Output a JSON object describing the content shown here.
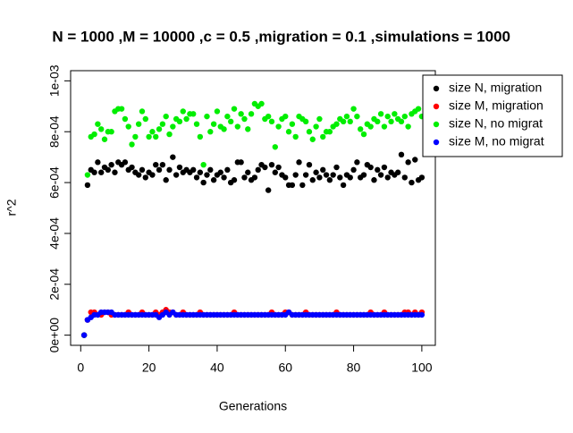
{
  "chart_data": {
    "type": "scatter",
    "title": "N = 1000 ,M = 10000 ,c = 0.5 ,migration = 0.1 ,simulations = 1000",
    "x_label": "Generations",
    "y_label": "r^2",
    "x": [
      1,
      2,
      3,
      4,
      5,
      6,
      7,
      8,
      9,
      10,
      11,
      12,
      13,
      14,
      15,
      16,
      17,
      18,
      19,
      20,
      21,
      22,
      23,
      24,
      25,
      26,
      27,
      28,
      29,
      30,
      31,
      32,
      33,
      34,
      35,
      36,
      37,
      38,
      39,
      40,
      41,
      42,
      43,
      44,
      45,
      46,
      47,
      48,
      49,
      50,
      51,
      52,
      53,
      54,
      55,
      56,
      57,
      58,
      59,
      60,
      61,
      62,
      63,
      64,
      65,
      66,
      67,
      68,
      69,
      70,
      71,
      72,
      73,
      74,
      75,
      76,
      77,
      78,
      79,
      80,
      81,
      82,
      83,
      84,
      85,
      86,
      87,
      88,
      89,
      90,
      91,
      92,
      93,
      94,
      95,
      96,
      97,
      98,
      99,
      100
    ],
    "xlim": [
      -2.96,
      103.96
    ],
    "xticks": [
      0,
      20,
      40,
      60,
      80,
      100
    ],
    "ylim": [
      -4e-05,
      0.00104
    ],
    "yticks": [
      {
        "value": 0,
        "label": "0e+00"
      },
      {
        "value": 0.0002,
        "label": "2e-04"
      },
      {
        "value": 0.0004,
        "label": "4e-04"
      },
      {
        "value": 0.0006,
        "label": "6e-04"
      },
      {
        "value": 0.0008,
        "label": "8e-04"
      },
      {
        "value": 0.001,
        "label": "1e-03"
      }
    ],
    "legend": "topright",
    "series": [
      {
        "name": "size N, migration",
        "color": "#000000",
        "values": [
          0,
          0.00059,
          0.00065,
          0.00064,
          0.00068,
          0.00064,
          0.00066,
          0.00065,
          0.00067,
          0.00064,
          0.00068,
          0.00067,
          0.00068,
          0.00065,
          0.00066,
          0.00064,
          0.00063,
          0.00065,
          0.00062,
          0.00064,
          0.00063,
          0.00067,
          0.00065,
          0.00067,
          0.00061,
          0.00065,
          0.0007,
          0.00063,
          0.00066,
          0.00064,
          0.00065,
          0.00064,
          0.00065,
          0.00062,
          0.00064,
          0.0006,
          0.00063,
          0.00065,
          0.00061,
          0.00063,
          0.00064,
          0.00062,
          0.00065,
          0.0006,
          0.00061,
          0.00068,
          0.00068,
          0.00062,
          0.00064,
          0.00061,
          0.00062,
          0.00065,
          0.00067,
          0.00066,
          0.00057,
          0.00067,
          0.00064,
          0.00066,
          0.00063,
          0.00062,
          0.00059,
          0.00059,
          0.00063,
          0.00068,
          0.00059,
          0.00063,
          0.00067,
          0.00061,
          0.00064,
          0.00062,
          0.00065,
          0.00063,
          0.00061,
          0.00063,
          0.00066,
          0.00062,
          0.00059,
          0.00063,
          0.00062,
          0.00065,
          0.00068,
          0.00062,
          0.00063,
          0.00067,
          0.00066,
          0.00061,
          0.00065,
          0.00063,
          0.00066,
          0.00062,
          0.00064,
          0.00063,
          0.00064,
          0.00071,
          0.00062,
          0.00068,
          0.0006,
          0.00069,
          0.00061,
          0.00062
        ]
      },
      {
        "name": "size M, migration",
        "color": "#ff0000",
        "values": [
          0,
          6e-05,
          9e-05,
          9e-05,
          8e-05,
          8e-05,
          9e-05,
          9e-05,
          8e-05,
          8e-05,
          8e-05,
          8e-05,
          8e-05,
          9e-05,
          8e-05,
          8e-05,
          8e-05,
          9e-05,
          8e-05,
          8e-05,
          8e-05,
          9e-05,
          8e-05,
          9e-05,
          0.0001,
          9e-05,
          9e-05,
          8e-05,
          8e-05,
          9e-05,
          8e-05,
          8e-05,
          8e-05,
          8e-05,
          9e-05,
          8e-05,
          8e-05,
          8e-05,
          8e-05,
          8e-05,
          8e-05,
          8e-05,
          8e-05,
          8e-05,
          9e-05,
          8e-05,
          8e-05,
          8e-05,
          8e-05,
          8e-05,
          8e-05,
          8e-05,
          8e-05,
          8e-05,
          8e-05,
          9e-05,
          8e-05,
          8e-05,
          8e-05,
          9e-05,
          9e-05,
          8e-05,
          8e-05,
          8e-05,
          8e-05,
          9e-05,
          8e-05,
          8e-05,
          8e-05,
          8e-05,
          8e-05,
          8e-05,
          8e-05,
          8e-05,
          9e-05,
          8e-05,
          8e-05,
          8e-05,
          8e-05,
          8e-05,
          8e-05,
          8e-05,
          8e-05,
          8e-05,
          9e-05,
          8e-05,
          8e-05,
          8e-05,
          9e-05,
          8e-05,
          8e-05,
          8e-05,
          8e-05,
          8e-05,
          9e-05,
          9e-05,
          8e-05,
          9e-05,
          8e-05,
          9e-05
        ]
      },
      {
        "name": "size N, no migrat",
        "color": "#00ee00",
        "values": [
          0,
          0.00063,
          0.00078,
          0.00079,
          0.00083,
          0.00081,
          0.00077,
          0.0008,
          0.0008,
          0.00088,
          0.00089,
          0.00089,
          0.00085,
          0.00082,
          0.00075,
          0.00078,
          0.00083,
          0.00088,
          0.00085,
          0.00078,
          0.0008,
          0.00078,
          0.00081,
          0.00083,
          0.00086,
          0.00079,
          0.00082,
          0.00085,
          0.00084,
          0.00088,
          0.00085,
          0.00087,
          0.00087,
          0.00083,
          0.00078,
          0.00067,
          0.00086,
          0.0008,
          0.00083,
          0.00088,
          0.00082,
          0.00081,
          0.00086,
          0.00084,
          0.00089,
          0.00082,
          0.00087,
          0.00085,
          0.00081,
          0.00087,
          0.00091,
          0.0009,
          0.00091,
          0.00085,
          0.00086,
          0.00084,
          0.00074,
          0.00082,
          0.00085,
          0.00086,
          0.0008,
          0.00083,
          0.00078,
          0.00086,
          0.00085,
          0.00084,
          0.0008,
          0.00077,
          0.00082,
          0.00085,
          0.00078,
          0.0008,
          0.0008,
          0.00082,
          0.00083,
          0.00085,
          0.00084,
          0.00086,
          0.00084,
          0.00089,
          0.00086,
          0.00081,
          0.00079,
          0.00083,
          0.00082,
          0.00085,
          0.00084,
          0.00087,
          0.00082,
          0.00086,
          0.00084,
          0.00087,
          0.00085,
          0.00084,
          0.00086,
          0.00082,
          0.00087,
          0.00088,
          0.00089,
          0.00086
        ]
      },
      {
        "name": "size M, no migrat",
        "color": "#0000ff",
        "values": [
          0,
          6e-05,
          7e-05,
          8e-05,
          8e-05,
          9e-05,
          9e-05,
          9e-05,
          9e-05,
          8e-05,
          8e-05,
          8e-05,
          8e-05,
          8e-05,
          8e-05,
          8e-05,
          8e-05,
          8e-05,
          8e-05,
          8e-05,
          8e-05,
          8e-05,
          7e-05,
          8e-05,
          9e-05,
          8e-05,
          9e-05,
          8e-05,
          8e-05,
          8e-05,
          8e-05,
          8e-05,
          8e-05,
          8e-05,
          8e-05,
          8e-05,
          8e-05,
          8e-05,
          8e-05,
          8e-05,
          8e-05,
          8e-05,
          8e-05,
          8e-05,
          8e-05,
          8e-05,
          8e-05,
          8e-05,
          8e-05,
          8e-05,
          8e-05,
          8e-05,
          8e-05,
          8e-05,
          8e-05,
          8e-05,
          8e-05,
          8e-05,
          8e-05,
          8e-05,
          9e-05,
          8e-05,
          8e-05,
          8e-05,
          8e-05,
          8e-05,
          8e-05,
          8e-05,
          8e-05,
          8e-05,
          8e-05,
          8e-05,
          8e-05,
          8e-05,
          8e-05,
          8e-05,
          8e-05,
          8e-05,
          8e-05,
          8e-05,
          8e-05,
          8e-05,
          8e-05,
          8e-05,
          8e-05,
          8e-05,
          8e-05,
          8e-05,
          8e-05,
          8e-05,
          8e-05,
          8e-05,
          8e-05,
          8e-05,
          8e-05,
          8e-05,
          8e-05,
          8e-05,
          8e-05,
          8e-05
        ]
      }
    ]
  }
}
